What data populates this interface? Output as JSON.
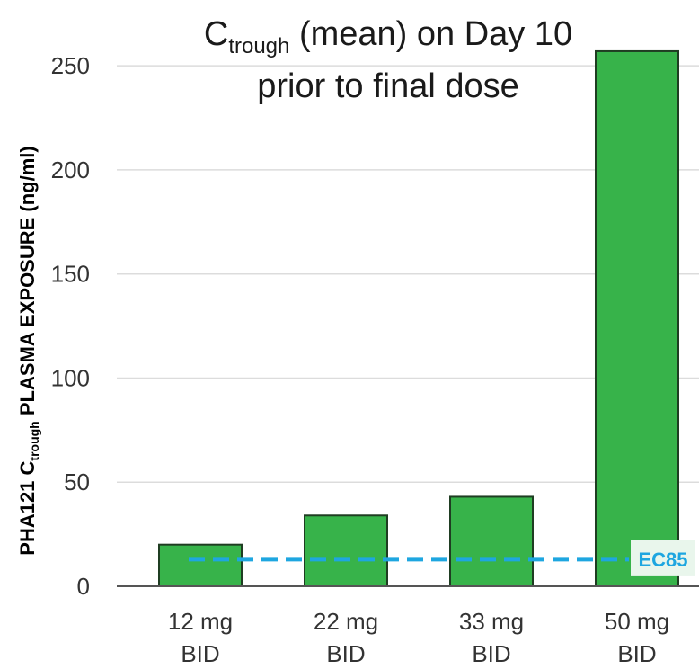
{
  "chart_data": {
    "type": "bar",
    "title": {
      "main": "C",
      "sub": "trough",
      "rest_line1": " (mean) on Day 10",
      "line2": "prior to final dose"
    },
    "ylabel": {
      "prefix": "PHA121 C",
      "sub": "trough",
      "suffix": " PLASMA EXPOSURE (ng/ml)"
    },
    "categories": [
      {
        "line1": "12 mg",
        "line2": "BID"
      },
      {
        "line1": "22 mg",
        "line2": "BID"
      },
      {
        "line1": "33 mg",
        "line2": "BID"
      },
      {
        "line1": "50 mg",
        "line2": "BID"
      }
    ],
    "values": [
      20,
      34,
      43,
      257
    ],
    "ylim": [
      0,
      260
    ],
    "yticks": [
      0,
      50,
      100,
      150,
      200,
      250
    ],
    "grid": true,
    "reference_line": {
      "label": "EC85",
      "value": 13
    },
    "colors": {
      "bar_fill": "#37b34a",
      "bar_stroke": "#1f3d22",
      "reference": "#1ea6e0",
      "grid": "#dcdcdc",
      "axis": "#555555"
    }
  }
}
